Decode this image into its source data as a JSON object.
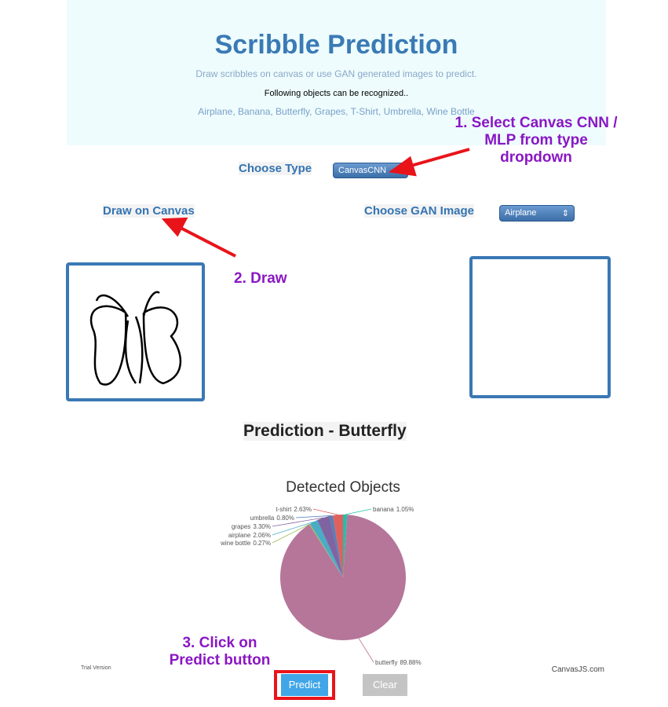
{
  "header": {
    "title": "Scribble Prediction",
    "subtitle": "Draw scribbles on canvas or use GAN generated images to predict.",
    "note": "Following objects can be recognized..",
    "objects": "Airplane, Banana, Butterfly, Grapes, T-Shirt, Umbrella, Wine Bottle"
  },
  "controls": {
    "type_label": "Choose Type",
    "type_value": "CanvasCNN",
    "canvas_label": "Draw on Canvas",
    "gan_label": "Choose GAN Image",
    "gan_value": "Airplane"
  },
  "annotations": [
    "1. Select Canvas CNN / MLP from type dropdown",
    "2. Draw",
    "3. Click on Predict button"
  ],
  "prediction": "Prediction - Butterfly",
  "chart_data": {
    "type": "pie",
    "title": "Detected Objects",
    "categories": [
      "banana",
      "butterfly",
      "wine bottle",
      "airplane",
      "grapes",
      "umbrella",
      "t-shirt"
    ],
    "values": [
      1.05,
      89.88,
      0.27,
      2.06,
      3.3,
      0.8,
      2.63
    ],
    "value_labels": [
      "1.05%",
      "89.88%",
      "0.27%",
      "2.06%",
      "3.30%",
      "0.80%",
      "2.63%"
    ],
    "colors": [
      "#23bfaa",
      "#b5769a",
      "#9bbb58",
      "#4aacc5",
      "#8064a1",
      "#4f81bc",
      "#e0605e"
    ]
  },
  "footer": {
    "trial": "Trial Version",
    "brand": "CanvasJS.com"
  },
  "buttons": {
    "predict": "Predict",
    "clear": "Clear"
  }
}
